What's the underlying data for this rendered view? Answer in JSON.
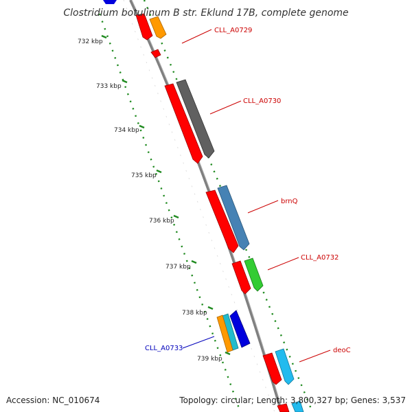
{
  "title": "Clostridium botulinum B str. Eklund 17B, complete genome",
  "footer": {
    "accession": "Accession: NC_010674",
    "summary": "Topology: circular; Length: 3,800,327 bp; Genes: 3,537"
  },
  "colors": {
    "backbone": "#808080",
    "tick": "#1f8a1f",
    "forward_label": "#cc0000",
    "reverse_label": "#0000bb"
  },
  "scale": {
    "unit": "kbp",
    "ticks": [
      "732 kbp",
      "733 kbp",
      "734 kbp",
      "735 kbp",
      "736 kbp",
      "737 kbp",
      "738 kbp",
      "739 kbp"
    ]
  },
  "genes": [
    {
      "label": "CLL_A0729",
      "strand": "forward",
      "color": "#ff9900"
    },
    {
      "label": "CLL_A0730",
      "strand": "forward",
      "color": "#606060"
    },
    {
      "label": "brnQ",
      "strand": "forward",
      "color": "#4682b4"
    },
    {
      "label": "CLL_A0732",
      "strand": "forward",
      "color": "#33cc33"
    },
    {
      "label": "CLL_A0733",
      "strand": "reverse",
      "color": "#0000dd"
    },
    {
      "label": "deoC",
      "strand": "forward",
      "color": "#22bbee"
    }
  ]
}
